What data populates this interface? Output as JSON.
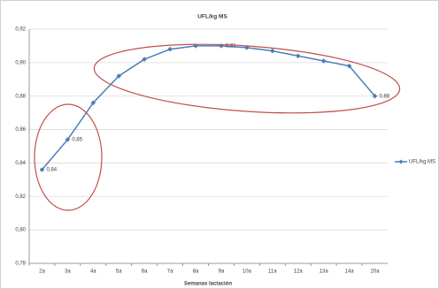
{
  "chart_data": {
    "type": "line",
    "title": "UFL/kg MS",
    "x_label": "Semanas lactación",
    "categories": [
      "2a",
      "3a",
      "4a",
      "5a",
      "6a",
      "7a",
      "8a",
      "9a",
      "10a",
      "11a",
      "12a",
      "13a",
      "14a",
      "20a"
    ],
    "series": [
      {
        "name": "UFL/kg MS",
        "color": "#4a7ebb",
        "values": [
          0.836,
          0.854,
          0.876,
          0.892,
          0.902,
          0.908,
          0.91,
          0.91,
          0.909,
          0.907,
          0.904,
          0.901,
          0.898,
          0.88
        ],
        "value_labels": [
          "0,84",
          "0,85",
          null,
          null,
          null,
          null,
          null,
          "0,91",
          null,
          null,
          null,
          null,
          null,
          "0,88"
        ]
      }
    ],
    "ylim": [
      0.78,
      0.92
    ],
    "yticks": [
      {
        "value": 0.78,
        "label": "0,78"
      },
      {
        "value": 0.8,
        "label": "0,80"
      },
      {
        "value": 0.82,
        "label": "0,82"
      },
      {
        "value": 0.84,
        "label": "0,84"
      },
      {
        "value": 0.86,
        "label": "0,86"
      },
      {
        "value": 0.88,
        "label": "0,88"
      },
      {
        "value": 0.9,
        "label": "0,90"
      },
      {
        "value": 0.92,
        "label": "0,92"
      }
    ],
    "grid": true,
    "legend": "right"
  }
}
